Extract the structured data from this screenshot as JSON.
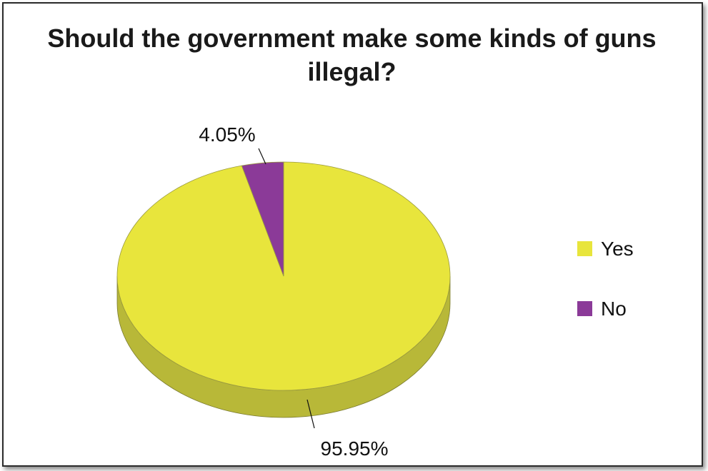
{
  "chart_data": {
    "type": "pie",
    "title": "Should the government make some kinds of guns illegal?",
    "slices": [
      {
        "label": "Yes",
        "value": 95.95,
        "value_label": "95.95%",
        "color": "#e8e53c",
        "side_color": "#b8b838"
      },
      {
        "label": "No",
        "value": 4.05,
        "value_label": "4.05%",
        "color": "#8b3a98",
        "side_color": "#6a2a75"
      }
    ],
    "legend": {
      "position": "right",
      "entries": [
        "Yes",
        "No"
      ]
    },
    "three_d": true
  }
}
